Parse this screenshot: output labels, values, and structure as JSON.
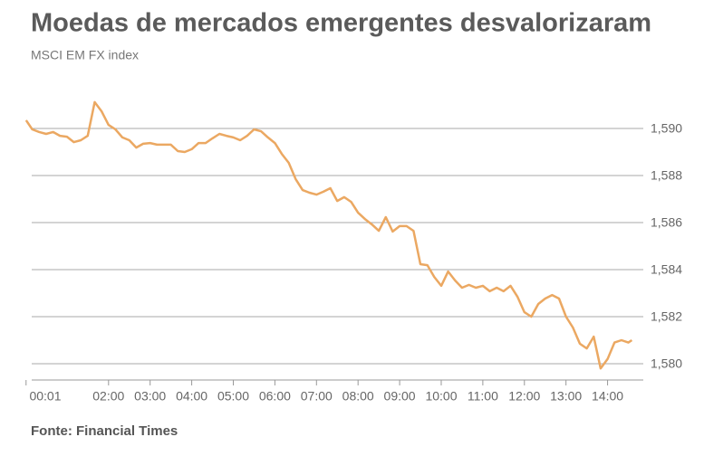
{
  "chart_data": {
    "type": "line",
    "title": "Moedas de mercados emergentes desvalorizaram",
    "subtitle": "MSCI EM FX index",
    "source": "Fonte: Financial Times",
    "x": [
      "00:01",
      "00:10",
      "00:20",
      "00:30",
      "00:40",
      "00:50",
      "01:00",
      "01:10",
      "01:20",
      "01:30",
      "01:40",
      "01:50",
      "02:00",
      "02:10",
      "02:20",
      "02:30",
      "02:40",
      "02:50",
      "03:00",
      "03:10",
      "03:20",
      "03:30",
      "03:40",
      "03:50",
      "04:00",
      "04:10",
      "04:20",
      "04:30",
      "04:40",
      "04:50",
      "05:00",
      "05:10",
      "05:20",
      "05:30",
      "05:40",
      "05:50",
      "06:00",
      "06:10",
      "06:20",
      "06:30",
      "06:40",
      "06:50",
      "07:00",
      "07:10",
      "07:20",
      "07:30",
      "07:40",
      "07:50",
      "08:00",
      "08:10",
      "08:20",
      "08:30",
      "08:40",
      "08:50",
      "09:00",
      "09:10",
      "09:20",
      "09:30",
      "09:40",
      "09:50",
      "10:00",
      "10:10",
      "10:20",
      "10:30",
      "10:40",
      "10:50",
      "11:00",
      "11:10",
      "11:20",
      "11:30",
      "11:40",
      "11:50",
      "12:00",
      "12:10",
      "12:20",
      "12:30",
      "12:40",
      "12:50",
      "13:00",
      "13:10",
      "13:20",
      "13:30",
      "13:40",
      "13:50",
      "14:00",
      "14:10",
      "14:20",
      "14:30",
      "14:35"
    ],
    "series": [
      {
        "name": "MSCI EM FX index",
        "color": "#eba862",
        "values": [
          1.59035,
          1.58996,
          1.58985,
          1.58977,
          1.58985,
          1.58969,
          1.58965,
          1.58942,
          1.5895,
          1.58969,
          1.59112,
          1.59073,
          1.59015,
          1.58996,
          1.58962,
          1.5895,
          1.58919,
          1.58935,
          1.58938,
          1.58931,
          1.58931,
          1.58931,
          1.58904,
          1.589,
          1.58912,
          1.58938,
          1.58938,
          1.58958,
          1.58977,
          1.58969,
          1.58962,
          1.5895,
          1.58969,
          1.58996,
          1.58988,
          1.58962,
          1.58938,
          1.58892,
          1.58854,
          1.58785,
          1.58738,
          1.58727,
          1.58719,
          1.58731,
          1.58746,
          1.58692,
          1.58708,
          1.58688,
          1.58642,
          1.58615,
          1.58592,
          1.58565,
          1.58623,
          1.58562,
          1.58585,
          1.58585,
          1.58565,
          1.58423,
          1.58419,
          1.58369,
          1.58331,
          1.58392,
          1.58354,
          1.58323,
          1.58335,
          1.58323,
          1.58331,
          1.58308,
          1.58323,
          1.58308,
          1.58331,
          1.58285,
          1.58219,
          1.582,
          1.58254,
          1.58277,
          1.58292,
          1.58277,
          1.582,
          1.58154,
          1.58085,
          1.58065,
          1.58115,
          1.5798,
          1.5802,
          1.5809,
          1.581,
          1.5809,
          1.581
        ]
      }
    ],
    "xlim": [
      "00:00",
      "14:45"
    ],
    "xticks": [
      "00:01",
      "02:00",
      "03:00",
      "04:00",
      "05:00",
      "06:00",
      "07:00",
      "08:00",
      "09:00",
      "10:00",
      "11:00",
      "12:00",
      "13:00",
      "14:00"
    ],
    "ylim": [
      1.5792,
      1.5916
    ],
    "yticks": [
      {
        "value": 1.58,
        "label": "1,580"
      },
      {
        "value": 1.582,
        "label": "1,582"
      },
      {
        "value": 1.584,
        "label": "1,584"
      },
      {
        "value": 1.586,
        "label": "1,586"
      },
      {
        "value": 1.588,
        "label": "1,588"
      },
      {
        "value": 1.59,
        "label": "1,590"
      }
    ],
    "grid": true
  }
}
